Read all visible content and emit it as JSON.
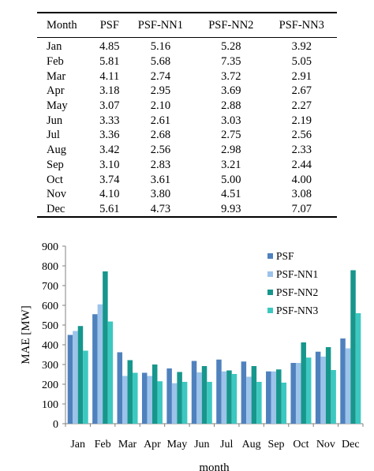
{
  "table": {
    "headers": [
      "Month",
      "PSF",
      "PSF-NN1",
      "PSF-NN2",
      "PSF-NN3"
    ],
    "rows": [
      [
        "Jan",
        "4.85",
        "5.16",
        "5.28",
        "3.92"
      ],
      [
        "Feb",
        "5.81",
        "5.68",
        "7.35",
        "5.05"
      ],
      [
        "Mar",
        "4.11",
        "2.74",
        "3.72",
        "2.91"
      ],
      [
        "Apr",
        "3.18",
        "2.95",
        "3.69",
        "2.67"
      ],
      [
        "May",
        "3.07",
        "2.10",
        "2.88",
        "2.27"
      ],
      [
        "Jun",
        "3.33",
        "2.61",
        "3.03",
        "2.19"
      ],
      [
        "Jul",
        "3.36",
        "2.68",
        "2.75",
        "2.56"
      ],
      [
        "Aug",
        "3.42",
        "2.56",
        "2.98",
        "2.33"
      ],
      [
        "Sep",
        "3.10",
        "2.83",
        "3.21",
        "2.44"
      ],
      [
        "Oct",
        "3.74",
        "3.61",
        "5.00",
        "4.00"
      ],
      [
        "Nov",
        "4.10",
        "3.80",
        "4.51",
        "3.08"
      ],
      [
        "Dec",
        "5.61",
        "4.73",
        "9.93",
        "7.07"
      ]
    ]
  },
  "chart_data": {
    "type": "bar",
    "categories": [
      "Jan",
      "Feb",
      "Mar",
      "Apr",
      "May",
      "Jun",
      "Jul",
      "Aug",
      "Sep",
      "Oct",
      "Nov",
      "Dec"
    ],
    "series": [
      {
        "name": "PSF",
        "color": "#4f81bd",
        "values": [
          450,
          555,
          362,
          258,
          280,
          318,
          325,
          315,
          265,
          308,
          365,
          432
        ]
      },
      {
        "name": "PSF-NN1",
        "color": "#9cc3ea",
        "values": [
          470,
          605,
          242,
          242,
          205,
          260,
          265,
          238,
          265,
          308,
          340,
          382
        ]
      },
      {
        "name": "PSF-NN2",
        "color": "#17968c",
        "values": [
          495,
          772,
          322,
          300,
          262,
          292,
          270,
          292,
          275,
          412,
          388,
          778
        ]
      },
      {
        "name": "PSF-NN3",
        "color": "#3cc8c0",
        "values": [
          370,
          518,
          258,
          215,
          212,
          212,
          252,
          212,
          208,
          335,
          272,
          560
        ]
      }
    ],
    "xlabel": "month",
    "ylabel": "MAE [MW]",
    "ylim": [
      0,
      900
    ],
    "yticks": [
      "0",
      "100",
      "200",
      "300",
      "400",
      "500",
      "600",
      "700",
      "800",
      "900"
    ],
    "legend": "top-right",
    "grid": false
  }
}
